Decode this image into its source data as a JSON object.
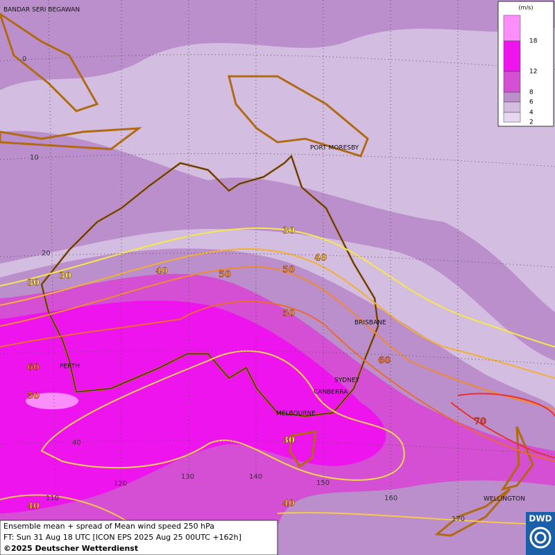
{
  "map": {
    "cities": [
      "BANDAR SERI BEGAWAN",
      "PORT MORESBY",
      "BRISBANE",
      "SYDNEY",
      "CANBERRA",
      "PERTH",
      "MELBOURNE",
      "WELLINGTON"
    ],
    "latitude_labels": [
      "0",
      "10",
      "20",
      "40"
    ],
    "longitude_labels": [
      "110",
      "120",
      "130",
      "140",
      "150",
      "160",
      "170"
    ],
    "contour_labels": [
      30,
      40,
      50,
      30,
      30,
      40,
      50,
      50,
      60,
      60,
      50,
      70,
      30,
      40,
      40
    ],
    "legend": {
      "unit": "(m/s)",
      "levels": [
        18,
        12,
        8,
        6,
        4,
        2
      ],
      "colors": [
        "#fb8efb",
        "#ee14ee",
        "#d44fd4",
        "#bb8fcc",
        "#d3bde0",
        "#e6d8ee"
      ]
    },
    "footer": {
      "line1": "Ensemble mean + spread of Mean wind speed 250 hPa",
      "line2": "FT: Sun 31 Aug 18 UTC [ICON EPS 2025 Aug 25 00UTC +162h]",
      "line3": "©2025 Deutscher Wetterdienst"
    },
    "logo": "DWD"
  }
}
